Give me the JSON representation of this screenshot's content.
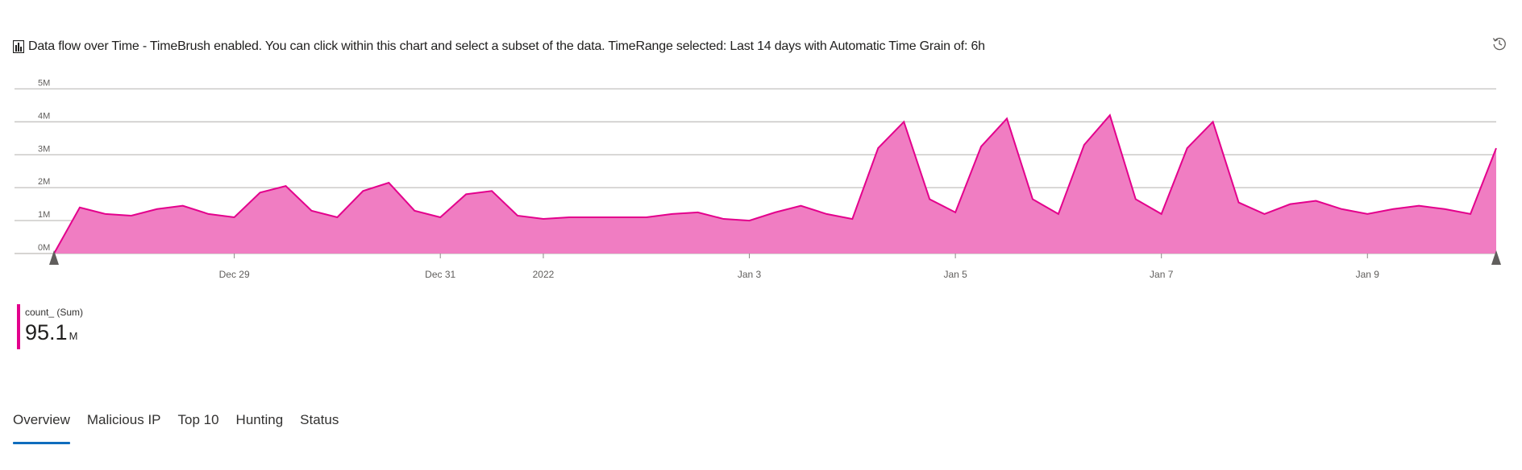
{
  "header": {
    "title": "Data flow over Time - TimeBrush enabled. You can click within this chart and select a subset of the data. TimeRange selected: Last 14 days with Automatic Time Grain of: 6h",
    "chart_icon": "bar-chart-icon",
    "history_icon": "history-icon"
  },
  "colors": {
    "series": "#e3008c",
    "series_fill": "#f07dc2",
    "grid": "#c8c6c4",
    "tab_indicator": "#0f6cbd"
  },
  "legend": {
    "series_name": "count_ (Sum)",
    "value": "95.1",
    "unit": "M"
  },
  "tabs": [
    {
      "label": "Overview",
      "active": true
    },
    {
      "label": "Malicious IP",
      "active": false
    },
    {
      "label": "Top 10",
      "active": false
    },
    {
      "label": "Hunting",
      "active": false
    },
    {
      "label": "Status",
      "active": false
    }
  ],
  "chart_data": {
    "type": "area",
    "y_ticks": [
      "0M",
      "1M",
      "2M",
      "3M",
      "4M",
      "5M"
    ],
    "ylim": [
      0,
      5.5
    ],
    "x_ticks": [
      {
        "label": "Dec 29",
        "x": 7
      },
      {
        "label": "Dec 31",
        "x": 15
      },
      {
        "label": "2022",
        "x": 19
      },
      {
        "label": "Jan 3",
        "x": 27
      },
      {
        "label": "Jan 5",
        "x": 35
      },
      {
        "label": "Jan 7",
        "x": 43
      },
      {
        "label": "Jan 9",
        "x": 51
      }
    ],
    "xlim": [
      0,
      56
    ],
    "series": [
      {
        "name": "count_ (Sum)",
        "unit": "M",
        "values": [
          0.0,
          1.4,
          1.2,
          1.15,
          1.35,
          1.45,
          1.2,
          1.1,
          1.85,
          2.05,
          1.3,
          1.1,
          1.9,
          2.15,
          1.3,
          1.1,
          1.8,
          1.9,
          1.15,
          1.05,
          1.1,
          1.1,
          1.1,
          1.1,
          1.2,
          1.25,
          1.05,
          1.0,
          1.25,
          1.45,
          1.2,
          1.05,
          3.2,
          4.0,
          1.65,
          1.25,
          3.25,
          4.1,
          1.65,
          1.2,
          3.3,
          4.2,
          1.65,
          1.2,
          3.2,
          4.0,
          1.55,
          1.2,
          1.5,
          1.6,
          1.35,
          1.2,
          1.35,
          1.45,
          1.35,
          1.2,
          3.2
        ]
      }
    ],
    "grid": true,
    "time_brush_handles": true
  }
}
